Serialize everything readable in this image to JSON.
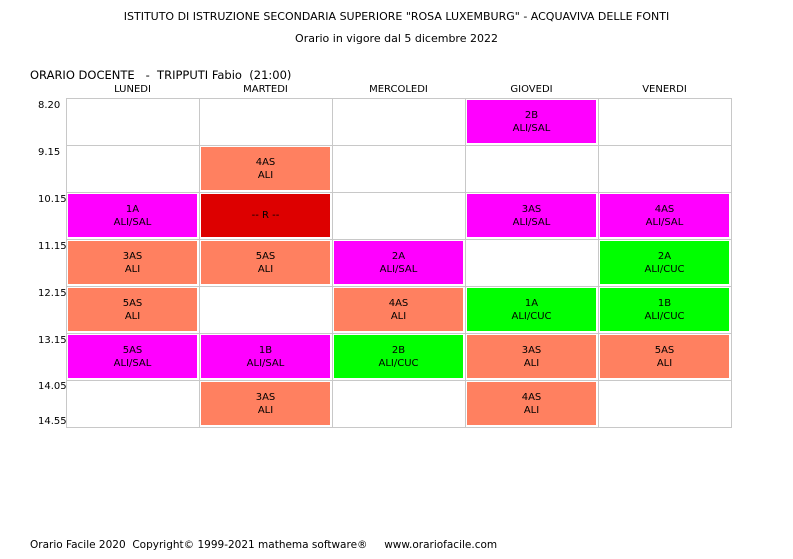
{
  "header": {
    "line1": "ISTITUTO DI ISTRUZIONE SECONDARIA SUPERIORE \"ROSA LUXEMBURG\" - ACQUAVIVA DELLE FONTI",
    "line2": "Orario in vigore dal 5 dicembre 2022"
  },
  "title": "ORARIO DOCENTE   -  TRIPPUTI Fabio  (21:00)",
  "days": [
    "LUNEDI",
    "MARTEDI",
    "MERCOLEDI",
    "GIOVEDI",
    "VENERDI"
  ],
  "times": [
    "8.20",
    "9.15",
    "10.15",
    "11.15",
    "12.15",
    "13.15",
    "14.05",
    "14.55"
  ],
  "colors": {
    "magenta": "#ff00ff",
    "salmon": "#ff8060",
    "green": "#00ff00",
    "red": "#dd0000",
    "grid": "#c8c8c8"
  },
  "lessons": [
    {
      "day": 3,
      "slot": 0,
      "class": "2B",
      "room": "ALI/SAL",
      "color": "magenta"
    },
    {
      "day": 1,
      "slot": 1,
      "class": "4AS",
      "room": "ALI",
      "color": "salmon"
    },
    {
      "day": 0,
      "slot": 2,
      "class": "1A",
      "room": "ALI/SAL",
      "color": "magenta"
    },
    {
      "day": 1,
      "slot": 2,
      "class": "-- R --",
      "room": "",
      "color": "red"
    },
    {
      "day": 3,
      "slot": 2,
      "class": "3AS",
      "room": "ALI/SAL",
      "color": "magenta"
    },
    {
      "day": 4,
      "slot": 2,
      "class": "4AS",
      "room": "ALI/SAL",
      "color": "magenta"
    },
    {
      "day": 0,
      "slot": 3,
      "class": "3AS",
      "room": "ALI",
      "color": "salmon"
    },
    {
      "day": 1,
      "slot": 3,
      "class": "5AS",
      "room": "ALI",
      "color": "salmon"
    },
    {
      "day": 2,
      "slot": 3,
      "class": "2A",
      "room": "ALI/SAL",
      "color": "magenta"
    },
    {
      "day": 4,
      "slot": 3,
      "class": "2A",
      "room": "ALI/CUC",
      "color": "green"
    },
    {
      "day": 0,
      "slot": 4,
      "class": "5AS",
      "room": "ALI",
      "color": "salmon"
    },
    {
      "day": 2,
      "slot": 4,
      "class": "4AS",
      "room": "ALI",
      "color": "salmon"
    },
    {
      "day": 3,
      "slot": 4,
      "class": "1A",
      "room": "ALI/CUC",
      "color": "green"
    },
    {
      "day": 4,
      "slot": 4,
      "class": "1B",
      "room": "ALI/CUC",
      "color": "green"
    },
    {
      "day": 0,
      "slot": 5,
      "class": "5AS",
      "room": "ALI/SAL",
      "color": "magenta"
    },
    {
      "day": 1,
      "slot": 5,
      "class": "1B",
      "room": "ALI/SAL",
      "color": "magenta"
    },
    {
      "day": 2,
      "slot": 5,
      "class": "2B",
      "room": "ALI/CUC",
      "color": "green"
    },
    {
      "day": 3,
      "slot": 5,
      "class": "3AS",
      "room": "ALI",
      "color": "salmon"
    },
    {
      "day": 4,
      "slot": 5,
      "class": "5AS",
      "room": "ALI",
      "color": "salmon"
    },
    {
      "day": 1,
      "slot": 6,
      "class": "3AS",
      "room": "ALI",
      "color": "salmon"
    },
    {
      "day": 3,
      "slot": 6,
      "class": "4AS",
      "room": "ALI",
      "color": "salmon"
    }
  ],
  "footer": "Orario Facile 2020  Copyright© 1999-2021 mathema software®     www.orariofacile.com"
}
